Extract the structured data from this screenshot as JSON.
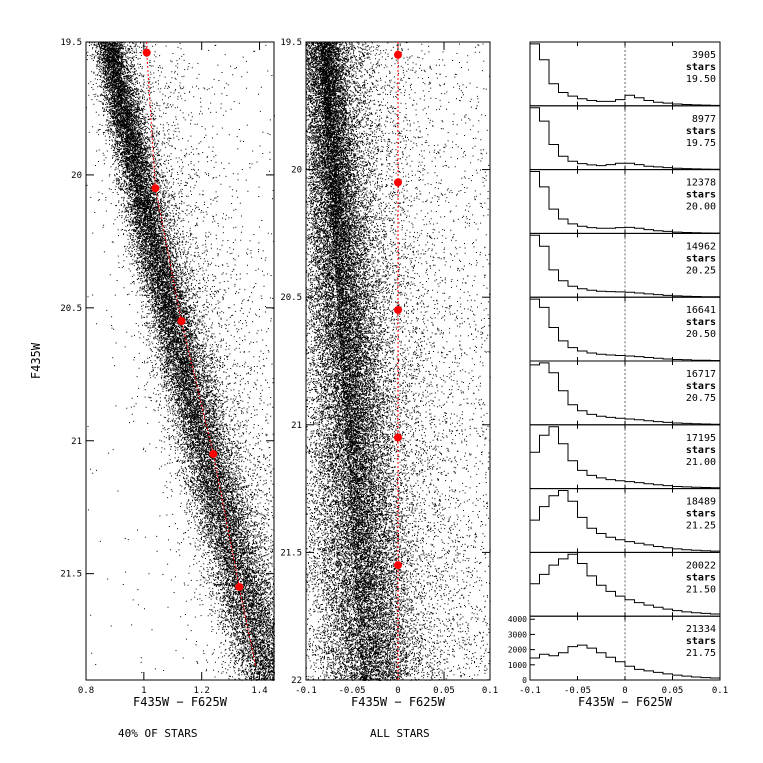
{
  "chart_data": [
    {
      "type": "scatter",
      "xlabel": "F435W − F625W",
      "ylabel": "F435W",
      "caption": "40% OF STARS",
      "xlim": [
        0.8,
        1.45
      ],
      "ylim": [
        21.9,
        19.5
      ],
      "xticks": [
        0.8,
        1,
        1.2,
        1.4
      ],
      "xtick_labels": [
        "0.8",
        "1",
        "1.2",
        "1.4"
      ],
      "yticks": [
        19.5,
        20,
        20.5,
        21,
        21.5
      ],
      "ytick_labels": [
        "19.5",
        "20",
        "20.5",
        "21",
        "21.5"
      ],
      "fiducial_points": {
        "x": [
          1.01,
          1.04,
          1.13,
          1.24,
          1.33
        ],
        "y": [
          19.54,
          20.05,
          20.55,
          21.05,
          21.55
        ]
      },
      "marker_color": "#ff0000"
    },
    {
      "type": "scatter",
      "xlabel": "F435W − F625W",
      "caption": "ALL STARS",
      "xlim": [
        -0.1,
        0.1
      ],
      "ylim": [
        22,
        19.5
      ],
      "xticks": [
        -0.1,
        -0.05,
        0,
        0.05,
        0.1
      ],
      "xtick_labels": [
        "-0.1",
        "-0.05",
        "0",
        "0.05",
        "0.1"
      ],
      "yticks": [
        19.5,
        20,
        20.5,
        21,
        21.5,
        22
      ],
      "ytick_labels": [
        "19.5",
        "20",
        "20.5",
        "21",
        "21.5",
        "22"
      ],
      "fiducial_points": {
        "x": [
          0,
          0,
          0,
          0,
          0
        ],
        "y": [
          19.55,
          20.05,
          20.55,
          21.05,
          21.55
        ]
      },
      "marker_color": "#ff0000"
    },
    {
      "type": "histogram",
      "xlabel": "F435W − F625W",
      "xlim": [
        -0.1,
        0.1
      ],
      "xticks": [
        -0.1,
        -0.05,
        0,
        0.05,
        0.1
      ],
      "xtick_labels": [
        "-0.1",
        "-0.05",
        "0",
        "0.05",
        "0.1"
      ],
      "bottom_panel_ylim": [
        0,
        4200
      ],
      "yticks": [
        0,
        1000,
        2000,
        3000,
        4000
      ],
      "ytick_labels": [
        "0",
        "1000",
        "2000",
        "3000",
        "4000"
      ],
      "bin_edges": [
        -0.1,
        -0.09,
        -0.08,
        -0.07,
        -0.06,
        -0.05,
        -0.04,
        -0.03,
        -0.02,
        -0.01,
        0,
        0.01,
        0.02,
        0.03,
        0.04,
        0.05,
        0.06,
        0.07,
        0.08,
        0.09,
        0.1
      ],
      "panels": [
        {
          "count": "3905",
          "unit": "stars",
          "mag": "19.50",
          "values": [
            700,
            520,
            250,
            150,
            110,
            80,
            60,
            50,
            50,
            70,
            120,
            90,
            60,
            40,
            30,
            20,
            15,
            10,
            8,
            5
          ]
        },
        {
          "count": "8977",
          "unit": "stars",
          "mag": "19.75",
          "values": [
            1850,
            1450,
            750,
            400,
            250,
            180,
            140,
            120,
            150,
            190,
            190,
            150,
            100,
            80,
            60,
            40,
            30,
            20,
            15,
            10
          ]
        },
        {
          "count": "12378",
          "unit": "stars",
          "mag": "20.00",
          "values": [
            2800,
            2100,
            1100,
            650,
            430,
            320,
            260,
            230,
            230,
            260,
            270,
            230,
            170,
            120,
            90,
            60,
            40,
            30,
            20,
            15
          ]
        },
        {
          "count": "14962",
          "unit": "stars",
          "mag": "20.25",
          "values": [
            3400,
            2800,
            1500,
            900,
            600,
            460,
            380,
            330,
            310,
            290,
            270,
            230,
            180,
            140,
            100,
            70,
            50,
            40,
            30,
            20
          ]
        },
        {
          "count": "16641",
          "unit": "stars",
          "mag": "20.50",
          "values": [
            3700,
            3200,
            2000,
            1200,
            800,
            600,
            480,
            400,
            360,
            330,
            300,
            260,
            210,
            160,
            120,
            90,
            70,
            50,
            40,
            30
          ]
        },
        {
          "count": "16717",
          "unit": "stars",
          "mag": "20.75",
          "values": [
            3000,
            3100,
            2600,
            1700,
            1000,
            700,
            520,
            430,
            370,
            330,
            290,
            250,
            200,
            160,
            120,
            90,
            70,
            50,
            40,
            30
          ]
        },
        {
          "count": "17195",
          "unit": "stars",
          "mag": "21.00",
          "values": [
            1700,
            2500,
            2900,
            2100,
            1300,
            850,
            620,
            500,
            420,
            370,
            330,
            280,
            230,
            180,
            140,
            100,
            80,
            60,
            50,
            40
          ]
        },
        {
          "count": "18489",
          "unit": "stars",
          "mag": "21.25",
          "values": [
            1200,
            1700,
            2100,
            2300,
            1900,
            1300,
            900,
            700,
            560,
            470,
            400,
            340,
            280,
            220,
            170,
            130,
            100,
            80,
            60,
            50
          ]
        },
        {
          "count": "20022",
          "unit": "stars",
          "mag": "21.50",
          "values": [
            1050,
            1350,
            1650,
            1850,
            2000,
            1700,
            1300,
            1000,
            800,
            650,
            530,
            440,
            360,
            290,
            230,
            180,
            140,
            110,
            90,
            70
          ]
        },
        {
          "count": "21334",
          "unit": "stars",
          "mag": "21.75",
          "values": [
            1450,
            1700,
            1600,
            1800,
            2200,
            2300,
            2100,
            1800,
            1500,
            1200,
            900,
            700,
            600,
            500,
            400,
            320,
            260,
            200,
            160,
            130
          ]
        }
      ]
    }
  ]
}
